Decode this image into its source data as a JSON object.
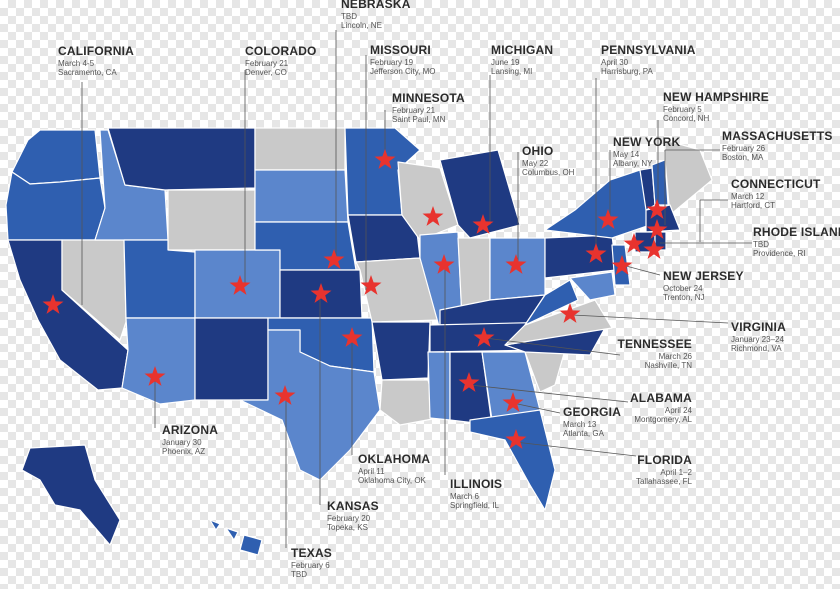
{
  "colors": {
    "dark": "#1f3a82",
    "medium": "#2f5fb0",
    "light": "#5b86cc",
    "gray": "#c9c9c9",
    "star": "#e8332e",
    "leader": "#555555"
  },
  "events": [
    {
      "id": "california",
      "name": "CALIFORNIA",
      "date": "March 4-5",
      "city": "Sacramento, CA"
    },
    {
      "id": "colorado",
      "name": "COLORADO",
      "date": "February 21",
      "city": "Denver, CO"
    },
    {
      "id": "nebraska",
      "name": "NEBRASKA",
      "date": "TBD",
      "city": "Lincoln, NE"
    },
    {
      "id": "missouri",
      "name": "MISSOURI",
      "date": "February 19",
      "city": "Jefferson City, MO"
    },
    {
      "id": "minnesota",
      "name": "MINNESOTA",
      "date": "February 21",
      "city": "Saint Paul, MN"
    },
    {
      "id": "michigan",
      "name": "MICHIGAN",
      "date": "June 19",
      "city": "Lansing, MI"
    },
    {
      "id": "pennsylvania",
      "name": "PENNSYLVANIA",
      "date": "April 30",
      "city": "Harrisburg, PA"
    },
    {
      "id": "new-hampshire",
      "name": "NEW HAMPSHIRE",
      "date": "February 5",
      "city": "Concord, NH"
    },
    {
      "id": "ohio",
      "name": "OHIO",
      "date": "May 22",
      "city": "Columbus, OH"
    },
    {
      "id": "new-york",
      "name": "NEW YORK",
      "date": "May 14",
      "city": "Albany, NY"
    },
    {
      "id": "massachusetts",
      "name": "MASSACHUSETTS",
      "date": "February 26",
      "city": "Boston, MA"
    },
    {
      "id": "connecticut",
      "name": "CONNECTICUT",
      "date": "March 12",
      "city": "Hartford, CT"
    },
    {
      "id": "rhode-island",
      "name": "RHODE ISLAND",
      "date": "TBD",
      "city": "Providence, RI"
    },
    {
      "id": "new-jersey",
      "name": "NEW JERSEY",
      "date": "October 24",
      "city": "Trenton, NJ"
    },
    {
      "id": "virginia",
      "name": "VIRGINIA",
      "date": "January 23–24",
      "city": "Richmond, VA"
    },
    {
      "id": "tennessee",
      "name": "TENNESSEE",
      "date": "March 26",
      "city": "Nashville, TN"
    },
    {
      "id": "alabama",
      "name": "ALABAMA",
      "date": "April 24",
      "city": "Montgomery, AL"
    },
    {
      "id": "georgia",
      "name": "GEORGIA",
      "date": "March 13",
      "city": "Atlanta, GA"
    },
    {
      "id": "florida",
      "name": "FLORIDA",
      "date": "April 1–2",
      "city": "Tallahassee, FL"
    },
    {
      "id": "arizona",
      "name": "ARIZONA",
      "date": "January 30",
      "city": "Phoenix, AZ"
    },
    {
      "id": "oklahoma",
      "name": "OKLAHOMA",
      "date": "April 11",
      "city": "Oklahoma City, OK"
    },
    {
      "id": "illinois",
      "name": "ILLINOIS",
      "date": "March 6",
      "city": "Springfield, IL"
    },
    {
      "id": "kansas",
      "name": "KANSAS",
      "date": "February 20",
      "city": "Topeka, KS"
    },
    {
      "id": "texas",
      "name": "TEXAS",
      "date": "February 6",
      "city": "TBD"
    }
  ]
}
